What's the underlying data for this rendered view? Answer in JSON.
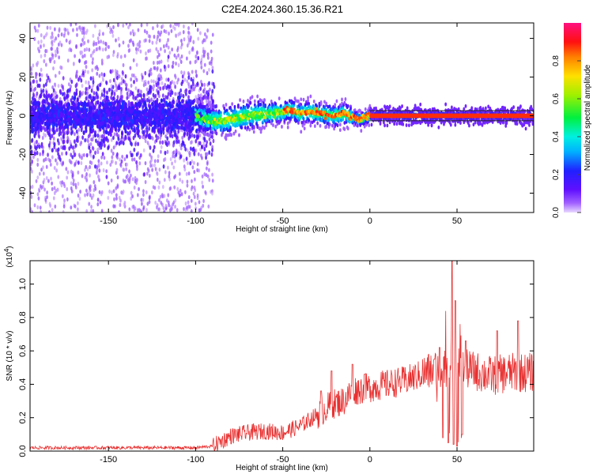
{
  "title": "C2E4.2024.360.15.36.R21",
  "chart_data": [
    {
      "type": "heatmap",
      "xlabel": "Height of straight line (km)",
      "ylabel": "Frequency (Hz)",
      "xlim": [
        -195,
        94
      ],
      "ylim": [
        -50,
        48
      ],
      "xticks": [
        -150,
        -100,
        -50,
        0,
        50
      ],
      "yticks": [
        -40,
        -20,
        0,
        20,
        40
      ],
      "colorbar": {
        "label": "Normalized spectral amplitude",
        "range": [
          0,
          1
        ],
        "ticks": [
          0.0,
          0.2,
          0.4,
          0.6,
          0.8
        ],
        "colormap": "rainbow: purple (0) - blue - cyan - green - yellow - orange - red - pink (1)"
      },
      "ridge_center_hz": [
        {
          "x": -195,
          "y": 0
        },
        {
          "x": -150,
          "y": 0
        },
        {
          "x": -100,
          "y": 0
        },
        {
          "x": -90,
          "y": -3
        },
        {
          "x": -80,
          "y": -2
        },
        {
          "x": -70,
          "y": 0
        },
        {
          "x": -60,
          "y": 1
        },
        {
          "x": -50,
          "y": 2
        },
        {
          "x": -45,
          "y": 3
        },
        {
          "x": -40,
          "y": 1
        },
        {
          "x": -35,
          "y": 2
        },
        {
          "x": -28,
          "y": 1
        },
        {
          "x": -20,
          "y": 0
        },
        {
          "x": -14,
          "y": 1
        },
        {
          "x": -10,
          "y": -1
        },
        {
          "x": -5,
          "y": -2
        },
        {
          "x": 0,
          "y": 0
        },
        {
          "x": 94,
          "y": 0
        }
      ]
    },
    {
      "type": "line",
      "xlabel": "Height of straight line (km)",
      "ylabel": "SNR (10 * v/v)",
      "multiplier": "(x10^4)",
      "xlim": [
        -195,
        94
      ],
      "ylim": [
        0,
        1.14
      ],
      "xticks": [
        -150,
        -100,
        -50,
        0,
        50
      ],
      "yticks": [
        0.0,
        0.2,
        0.4,
        0.6,
        0.8,
        1.0
      ],
      "series": [
        {
          "color": "#e83030",
          "envelope": [
            {
              "x": -195,
              "y": 0.02
            },
            {
              "x": -150,
              "y": 0.02
            },
            {
              "x": -100,
              "y": 0.02
            },
            {
              "x": -90,
              "y": 0.03
            },
            {
              "x": -80,
              "y": 0.09
            },
            {
              "x": -70,
              "y": 0.11
            },
            {
              "x": -60,
              "y": 0.12
            },
            {
              "x": -50,
              "y": 0.11
            },
            {
              "x": -40,
              "y": 0.15
            },
            {
              "x": -30,
              "y": 0.22
            },
            {
              "x": -22,
              "y": 0.28
            },
            {
              "x": -15,
              "y": 0.3
            },
            {
              "x": -10,
              "y": 0.36
            },
            {
              "x": 0,
              "y": 0.38
            },
            {
              "x": 10,
              "y": 0.4
            },
            {
              "x": 20,
              "y": 0.42
            },
            {
              "x": 30,
              "y": 0.46
            },
            {
              "x": 40,
              "y": 0.5
            },
            {
              "x": 50,
              "y": 0.5
            },
            {
              "x": 60,
              "y": 0.48
            },
            {
              "x": 70,
              "y": 0.45
            },
            {
              "x": 80,
              "y": 0.47
            },
            {
              "x": 94,
              "y": 0.47
            }
          ],
          "peaks": [
            {
              "x": -28,
              "y": 0.36
            },
            {
              "x": -22,
              "y": 0.48
            },
            {
              "x": -10,
              "y": 0.52
            },
            {
              "x": -3,
              "y": 0.46
            },
            {
              "x": 37,
              "y": 0.55
            },
            {
              "x": 40,
              "y": 0.62
            },
            {
              "x": 42,
              "y": 0.74
            },
            {
              "x": 45,
              "y": 0.8
            },
            {
              "x": 47,
              "y": 1.14
            },
            {
              "x": 49,
              "y": 0.9
            },
            {
              "x": 52,
              "y": 0.76
            },
            {
              "x": 55,
              "y": 0.66
            },
            {
              "x": 73,
              "y": 0.72
            },
            {
              "x": 85,
              "y": 0.78
            }
          ],
          "troughs": [
            {
              "x": 42,
              "y": 0.08
            },
            {
              "x": 45,
              "y": 0.05
            },
            {
              "x": 48,
              "y": 0.04
            },
            {
              "x": 50,
              "y": 0.03
            },
            {
              "x": 53,
              "y": 0.1
            }
          ]
        }
      ]
    }
  ]
}
